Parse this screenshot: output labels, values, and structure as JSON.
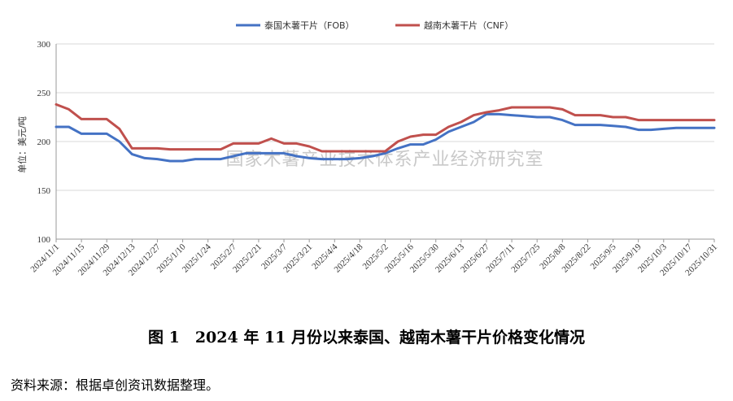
{
  "chart_data": {
    "type": "line",
    "ylabel": "单位：美元/吨",
    "ylim": [
      100,
      300
    ],
    "yticks": [
      100,
      150,
      200,
      250,
      300
    ],
    "watermark": "国家木薯产业技术体系产业经济研究室",
    "x_tick_labels": [
      "2024/11/1",
      "2024/11/15",
      "2024/11/29",
      "2024/12/13",
      "2024/12/27",
      "2025/1/10",
      "2025/1/24",
      "2025/2/7",
      "2025/2/21",
      "2025/3/7",
      "2025/3/21",
      "2025/4/4",
      "2025/4/18",
      "2025/5/2",
      "2025/5/16",
      "2025/5/30",
      "2025/6/13",
      "2025/6/27",
      "2025/7/11",
      "2025/7/25",
      "2025/8/8",
      "2025/8/22",
      "2025/9/5",
      "2025/9/19",
      "2025/10/3",
      "2025/10/17",
      "2025/10/31"
    ],
    "x": [
      "2024/11/1",
      "2024/11/8",
      "2024/11/15",
      "2024/11/22",
      "2024/11/29",
      "2024/12/6",
      "2024/12/13",
      "2024/12/20",
      "2024/12/27",
      "2025/1/3",
      "2025/1/10",
      "2025/1/17",
      "2025/1/24",
      "2025/1/31",
      "2025/2/7",
      "2025/2/14",
      "2025/2/21",
      "2025/2/28",
      "2025/3/7",
      "2025/3/14",
      "2025/3/21",
      "2025/3/28",
      "2025/4/4",
      "2025/4/11",
      "2025/4/18",
      "2025/4/25",
      "2025/5/2",
      "2025/5/9",
      "2025/5/16",
      "2025/5/23",
      "2025/5/30",
      "2025/6/6",
      "2025/6/13",
      "2025/6/20",
      "2025/6/27",
      "2025/7/4",
      "2025/7/11",
      "2025/7/18",
      "2025/7/25",
      "2025/8/1",
      "2025/8/8",
      "2025/8/15",
      "2025/8/22",
      "2025/8/29",
      "2025/9/5",
      "2025/9/12",
      "2025/9/19",
      "2025/9/26",
      "2025/10/3",
      "2025/10/10",
      "2025/10/17",
      "2025/10/24",
      "2025/10/31"
    ],
    "series": [
      {
        "name": "泰国木薯干片（FOB）",
        "color": "#4472c4",
        "values": [
          215,
          215,
          208,
          208,
          208,
          200,
          187,
          183,
          182,
          180,
          180,
          182,
          182,
          182,
          185,
          188,
          188,
          188,
          188,
          185,
          183,
          182,
          182,
          182,
          183,
          185,
          188,
          193,
          197,
          197,
          202,
          210,
          215,
          220,
          228,
          228,
          227,
          226,
          225,
          225,
          222,
          217,
          217,
          217,
          216,
          215,
          212,
          212,
          213,
          214,
          214,
          214,
          214
        ]
      },
      {
        "name": "越南木薯干片（CNF）",
        "color": "#c0504d",
        "values": [
          238,
          233,
          223,
          223,
          223,
          213,
          193,
          193,
          193,
          192,
          192,
          192,
          192,
          192,
          198,
          198,
          198,
          203,
          198,
          198,
          195,
          190,
          190,
          190,
          190,
          190,
          190,
          200,
          205,
          207,
          207,
          215,
          220,
          227,
          230,
          232,
          235,
          235,
          235,
          235,
          233,
          227,
          227,
          227,
          225,
          225,
          222,
          222,
          222,
          222,
          222,
          222,
          222
        ]
      }
    ]
  },
  "caption": "图 1　2024 年 11 月份以来泰国、越南木薯干片价格变化情况",
  "source": "资料来源：根据卓创资讯数据整理。"
}
